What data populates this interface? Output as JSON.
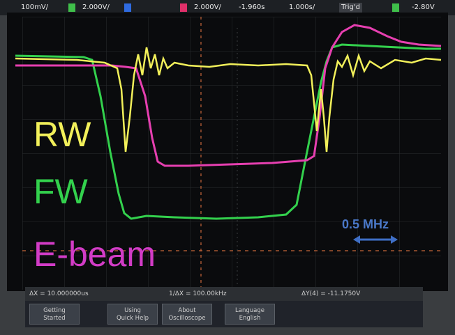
{
  "header": {
    "ch1_scale": "100mV/",
    "ch2_scale": "2.000V/",
    "ch4_scale": "2.000V/",
    "time_offset": "-1.960s",
    "time_scale": "1.000s/",
    "trigger_status": "Trig'd",
    "trigger_level": "-2.80V"
  },
  "traces": {
    "rw_label": "RW",
    "fw_label": "FW",
    "ebeam_label": "E-beam",
    "rw_color": "#f2f05a",
    "fw_color": "#33d14d",
    "ebeam_color": "#e63fb0"
  },
  "annotation": {
    "freq_label": "0.5 MHz",
    "arrow_color": "#3f6fc6"
  },
  "statusbar": {
    "delta_x": "ΔX = 10.000000us",
    "inv_delta_x": "1/ΔX = 100.00kHz",
    "delta_y": "ΔY(4) = -11.1750V"
  },
  "softkeys": [
    {
      "line1": "Getting",
      "line2": "Started"
    },
    {
      "line1": "Using",
      "line2": "Quick Help"
    },
    {
      "line1": "About",
      "line2": "Oscilloscope"
    },
    {
      "line1": "Language",
      "line2": "English"
    }
  ]
}
